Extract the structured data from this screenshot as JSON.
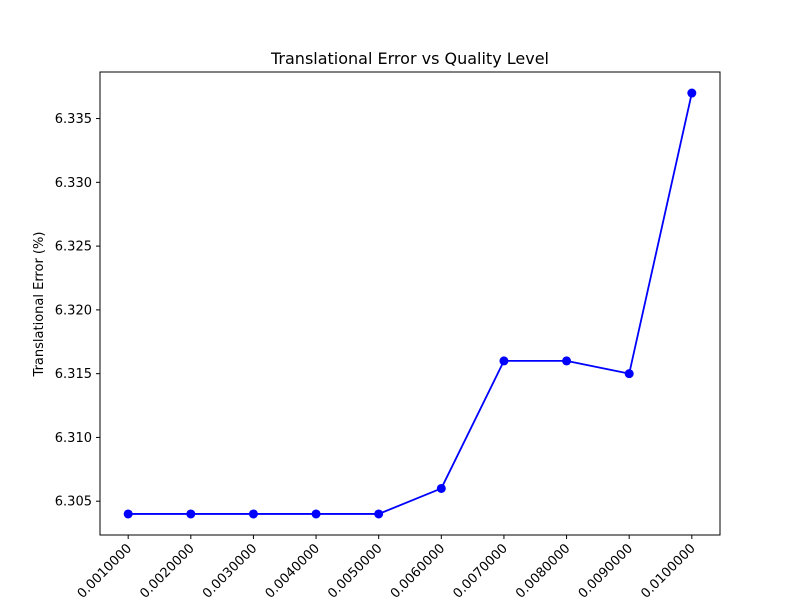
{
  "chart_data": {
    "type": "line",
    "title": "Translational Error vs Quality Level",
    "xlabel": "",
    "ylabel": "Translational Error (%)",
    "categories": [
      "0.0010000",
      "0.0020000",
      "0.0030000",
      "0.0040000",
      "0.0050000",
      "0.0060000",
      "0.0070000",
      "0.0080000",
      "0.0090000",
      "0.0100000"
    ],
    "x": [
      0.001,
      0.002,
      0.003,
      0.004,
      0.005,
      0.006,
      0.007,
      0.008,
      0.009,
      0.01
    ],
    "series": [
      {
        "values": [
          6.304,
          6.304,
          6.304,
          6.304,
          6.304,
          6.306,
          6.316,
          6.316,
          6.315,
          6.337
        ],
        "color": "#0000ff",
        "marker": "circle"
      }
    ],
    "xlim": [
      0.00055,
      0.01045
    ],
    "ylim": [
      6.30235,
      6.33865
    ],
    "yticks": [
      "6.305",
      "6.310",
      "6.315",
      "6.320",
      "6.325",
      "6.330",
      "6.335"
    ],
    "grid": false,
    "legend": "none",
    "x_tick_rotation": "45deg"
  }
}
